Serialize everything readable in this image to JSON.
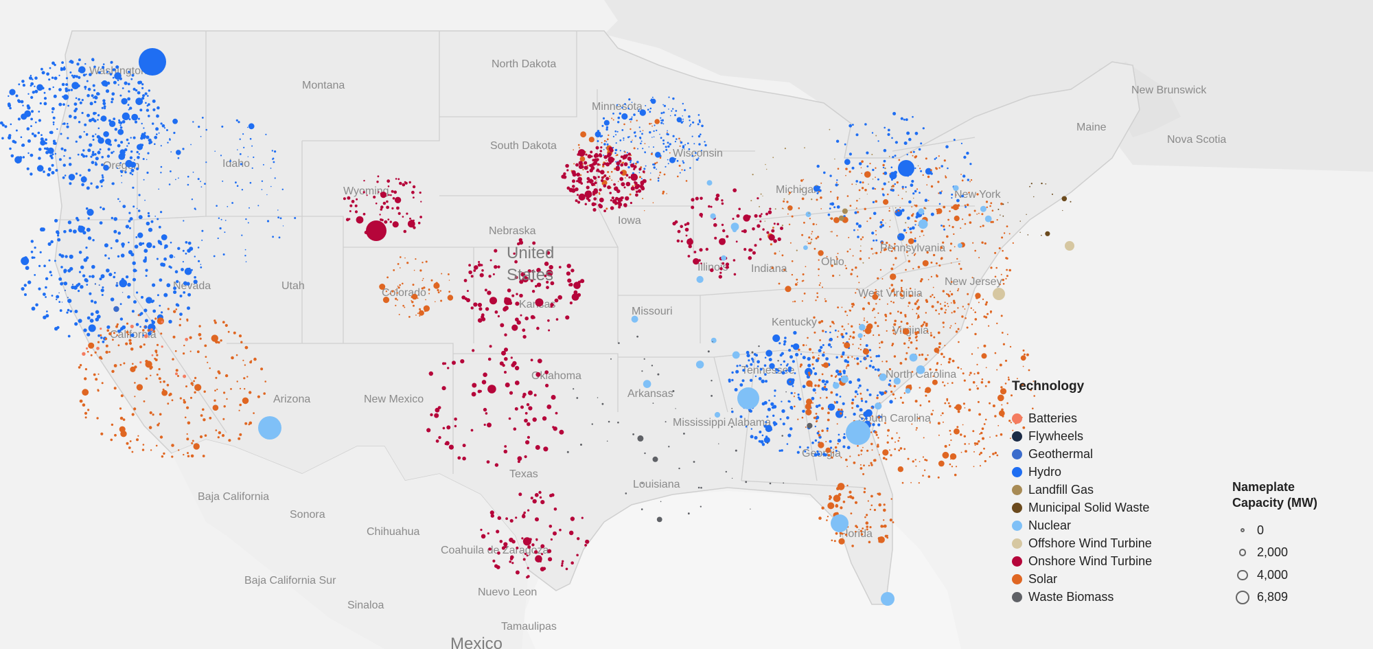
{
  "map": {
    "country_label": [
      "United",
      "States"
    ],
    "neighbor_labels": [
      "New Brunswick",
      "Nova Scotia",
      "Baja California",
      "Sonora",
      "Chihuahua",
      "Coahuila de Zaragoza",
      "Baja California Sur",
      "Sinaloa",
      "Nuevo Leon",
      "Tamaulipas",
      "Mexico"
    ],
    "state_labels": [
      "Washington",
      "Oregon",
      "California",
      "Nevada",
      "Idaho",
      "Montana",
      "Wyoming",
      "Utah",
      "Arizona",
      "Colorado",
      "New Mexico",
      "North Dakota",
      "South Dakota",
      "Nebraska",
      "Kansas",
      "Oklahoma",
      "Texas",
      "Minnesota",
      "Iowa",
      "Missouri",
      "Arkansas",
      "Louisiana",
      "Wisconsin",
      "Illinois",
      "Indiana",
      "Michigan",
      "Ohio",
      "Kentucky",
      "Tennessee",
      "Mississippi",
      "Alabama",
      "Georgia",
      "Florida",
      "South Carolina",
      "North Carolina",
      "Virginia",
      "West Virginia",
      "Pennsylvania",
      "New York",
      "Maine",
      "New Jersey"
    ]
  },
  "legend": {
    "title": "Technology",
    "items": [
      {
        "label": "Batteries",
        "color": "#f47c60"
      },
      {
        "label": "Flywheels",
        "color": "#1c2b45"
      },
      {
        "label": "Geothermal",
        "color": "#3b6ccc"
      },
      {
        "label": "Hydro",
        "color": "#1f6ef2"
      },
      {
        "label": "Landfill Gas",
        "color": "#a88b55"
      },
      {
        "label": "Municipal Solid Waste",
        "color": "#6b4a1d"
      },
      {
        "label": "Nuclear",
        "color": "#7fc0f7"
      },
      {
        "label": "Offshore Wind Turbine",
        "color": "#d6c7a1"
      },
      {
        "label": "Onshore Wind Turbine",
        "color": "#b5053a"
      },
      {
        "label": "Solar",
        "color": "#df6622"
      },
      {
        "label": "Waste Biomass",
        "color": "#5f6166"
      }
    ]
  },
  "size_legend": {
    "title_line1": "Nameplate",
    "title_line2": "Capacity (MW)",
    "items": [
      {
        "label": "0",
        "value": 0
      },
      {
        "label": "2,000",
        "value": 2000
      },
      {
        "label": "4,000",
        "value": 4000
      },
      {
        "label": "6,809",
        "value": 6809
      }
    ]
  }
}
